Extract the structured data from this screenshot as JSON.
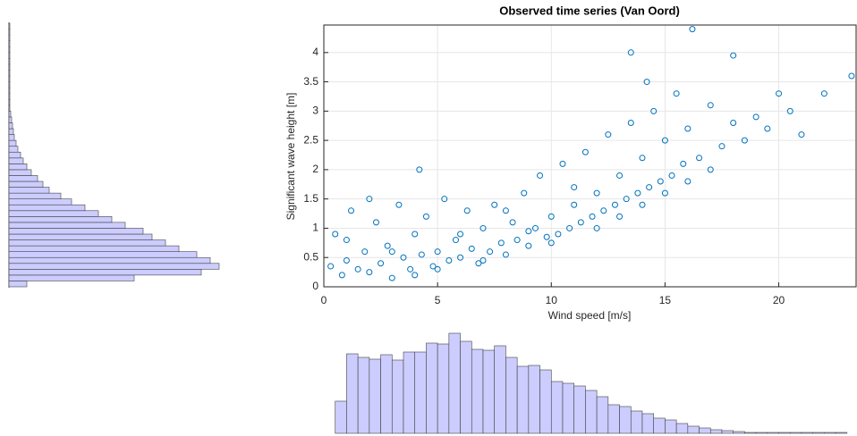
{
  "chart_data": [
    {
      "type": "scatter",
      "title": "Observed time series (Van Oord)",
      "x_label": "Wind speed [m/s]",
      "y_label": "Significant wave height [m]",
      "color": "#0072bd",
      "grid": true,
      "xlim": [
        0,
        23.4
      ],
      "ylim": [
        0,
        4.47
      ],
      "xticks": [
        0,
        5,
        10,
        15,
        20
      ],
      "yticks": [
        0,
        0.5,
        1,
        1.5,
        2,
        2.5,
        3,
        3.5,
        4
      ],
      "x": [
        0.3,
        0.5,
        0.8,
        1.0,
        1.2,
        1.5,
        1.8,
        2.0,
        2.3,
        2.5,
        2.8,
        3.0,
        3.3,
        3.5,
        3.8,
        4.0,
        4.3,
        4.5,
        4.8,
        5.0,
        5.3,
        5.5,
        5.8,
        6.0,
        6.3,
        6.5,
        6.8,
        7.0,
        7.3,
        7.5,
        7.8,
        8.0,
        8.3,
        8.5,
        8.8,
        9.0,
        9.3,
        9.5,
        9.8,
        10.0,
        10.3,
        10.5,
        10.8,
        11.0,
        11.3,
        11.5,
        11.8,
        12.0,
        12.3,
        12.5,
        12.8,
        13.0,
        13.3,
        13.5,
        13.8,
        14.0,
        14.3,
        14.5,
        14.8,
        15.0,
        15.3,
        15.5,
        15.8,
        16.0,
        16.5,
        17.0,
        17.5,
        18.0,
        18.5,
        19.0,
        19.5,
        20.0,
        20.5,
        21.0,
        22.0,
        23.2,
        1.0,
        2.0,
        3.0,
        4.0,
        5.0,
        6.0,
        7.0,
        8.0,
        9.0,
        10.0,
        11.0,
        12.0,
        13.0,
        14.0,
        15.0,
        16.0,
        17.0,
        4.2,
        13.5,
        14.2,
        16.2,
        18.0
      ],
      "values": [
        0.35,
        0.9,
        0.2,
        0.45,
        1.3,
        0.3,
        0.6,
        0.25,
        1.1,
        0.4,
        0.7,
        0.15,
        1.4,
        0.5,
        0.3,
        0.9,
        0.55,
        1.2,
        0.35,
        0.6,
        1.5,
        0.45,
        0.8,
        0.5,
        1.3,
        0.65,
        0.4,
        1.0,
        0.6,
        1.4,
        0.75,
        0.55,
        1.1,
        0.8,
        1.6,
        0.7,
        1.0,
        1.9,
        0.85,
        1.2,
        0.9,
        2.1,
        1.0,
        1.4,
        1.1,
        2.3,
        1.2,
        1.6,
        1.3,
        2.6,
        1.4,
        1.9,
        1.5,
        2.8,
        1.6,
        2.2,
        1.7,
        3.0,
        1.8,
        2.5,
        1.9,
        3.3,
        2.1,
        2.7,
        2.2,
        3.1,
        2.4,
        2.8,
        2.5,
        2.9,
        2.7,
        3.3,
        3.0,
        2.6,
        3.3,
        3.6,
        0.8,
        1.5,
        0.6,
        0.2,
        0.3,
        0.9,
        0.45,
        1.3,
        0.95,
        0.75,
        1.7,
        1.0,
        1.2,
        1.4,
        1.6,
        1.8,
        2.0,
        2.0,
        4.0,
        3.5,
        4.4,
        3.95
      ]
    },
    {
      "type": "histogram",
      "orientation": "vertical",
      "color": "#ccccff",
      "bins": [
        0.5,
        1,
        1.5,
        2,
        2.5,
        3,
        3.5,
        4,
        4.5,
        5,
        5.5,
        6,
        6.5,
        7,
        7.5,
        8,
        8.5,
        9,
        9.5,
        10,
        10.5,
        11,
        11.5,
        12,
        12.5,
        13,
        13.5,
        14,
        14.5,
        15,
        15.5,
        16,
        16.5,
        17,
        17.5,
        18,
        18.5,
        19,
        19.5,
        20,
        20.5,
        21,
        21.5,
        22,
        22.5,
        23
      ],
      "values": [
        36,
        89,
        85,
        83,
        88,
        82,
        91,
        91,
        101,
        100,
        112,
        103,
        94,
        93,
        98,
        85,
        75,
        76,
        71,
        58,
        56,
        53,
        48,
        41,
        32,
        30,
        25,
        22,
        17,
        15,
        11,
        8,
        6,
        4,
        3,
        2,
        1,
        1,
        1,
        1,
        1,
        1,
        1,
        1,
        1
      ]
    },
    {
      "type": "histogram",
      "orientation": "horizontal",
      "color": "#ccccff",
      "bins": [
        0,
        0.1,
        0.2,
        0.3,
        0.4,
        0.5,
        0.6,
        0.7,
        0.8,
        0.9,
        1,
        1.1,
        1.2,
        1.3,
        1.4,
        1.5,
        1.6,
        1.7,
        1.8,
        1.9,
        2,
        2.1,
        2.2,
        2.3,
        2.4,
        2.5,
        2.6,
        2.7,
        2.8,
        2.9,
        3,
        3.1,
        3.2,
        3.3,
        3.4,
        3.5,
        3.6,
        3.7,
        3.8,
        3.9,
        4,
        4.1,
        4.2,
        4.3,
        4.4,
        4.5
      ],
      "values": [
        20,
        140,
        215,
        235,
        225,
        210,
        190,
        175,
        160,
        150,
        130,
        115,
        100,
        85,
        70,
        58,
        45,
        38,
        32,
        25,
        20,
        16,
        13,
        10,
        8,
        6,
        5,
        4,
        3,
        2,
        1,
        1,
        1,
        1,
        1,
        1,
        1,
        1,
        1,
        1,
        1,
        1,
        1,
        1,
        1
      ]
    }
  ]
}
